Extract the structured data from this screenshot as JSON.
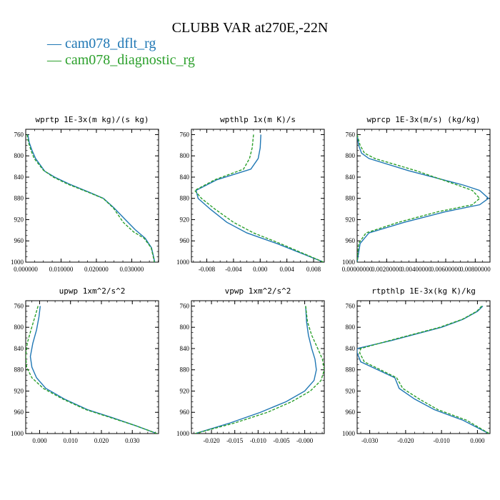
{
  "page": {
    "title": "CLUBB VAR at270E,-22N"
  },
  "legend": [
    {
      "label": "cam078_dflt_rg",
      "color": "#1f77b4"
    },
    {
      "label": "cam078_diagnostic_rg",
      "color": "#2ca02c"
    }
  ],
  "chart_data": [
    {
      "type": "line",
      "title": "wprtp  1E-3x(m kg)/(s kg)",
      "xlim": [
        0,
        0.0376
      ],
      "ylim": [
        1000,
        750
      ],
      "xticks": [
        "0.000000",
        "0.010000",
        "0.020000",
        "0.030000"
      ],
      "xtick_values": [
        0,
        0.01,
        0.02,
        0.03
      ],
      "yticks": [
        "760",
        "800",
        "840",
        "880",
        "920",
        "960",
        "1000"
      ],
      "ytick_values": [
        760,
        800,
        840,
        880,
        920,
        960,
        1000
      ],
      "series": [
        {
          "name": "cam078_dflt_rg",
          "color": "#1f77b4",
          "dashed": false,
          "x": [
            0.0006,
            0.001,
            0.0018,
            0.0028,
            0.0054,
            0.0082,
            0.0123,
            0.0178,
            0.022,
            0.025,
            0.0282,
            0.031,
            0.0338,
            0.0356,
            0.0362,
            0.0365
          ],
          "y": [
            760,
            775,
            790,
            805,
            829,
            840,
            853,
            868,
            880,
            898,
            920,
            939,
            955,
            973,
            990,
            1000
          ]
        },
        {
          "name": "cam078_diagnostic_rg",
          "color": "#2ca02c",
          "dashed": true,
          "x": [
            0.0004,
            0.0008,
            0.0015,
            0.0024,
            0.005,
            0.0078,
            0.0118,
            0.0175,
            0.0219,
            0.0248,
            0.0276,
            0.0305,
            0.0335,
            0.0355,
            0.0361,
            0.0364
          ],
          "y": [
            760,
            775,
            790,
            805,
            827,
            840,
            853,
            868,
            880,
            898,
            925,
            943,
            955,
            973,
            990,
            1000
          ]
        }
      ]
    },
    {
      "type": "line",
      "title": "wpthlp  1x(m K)/s",
      "xlim": [
        -0.0103,
        0.0096
      ],
      "ylim": [
        1000,
        750
      ],
      "xticks": [
        "-0.008",
        "-0.004",
        "0.000",
        "0.004",
        "0.008"
      ],
      "xtick_values": [
        -0.008,
        -0.004,
        0,
        0.004,
        0.008
      ],
      "yticks": [
        "760",
        "800",
        "840",
        "880",
        "920",
        "960",
        "1000"
      ],
      "ytick_values": [
        760,
        800,
        840,
        880,
        920,
        960,
        1000
      ],
      "series": [
        {
          "name": "cam078_dflt_rg",
          "color": "#1f77b4",
          "dashed": false,
          "x": [
            0.0001,
            0.0,
            -0.0003,
            -0.0014,
            -0.0065,
            -0.0096,
            -0.0093,
            -0.0075,
            -0.005,
            -0.002,
            0.0025,
            0.0095
          ],
          "y": [
            760,
            785,
            805,
            825,
            845,
            865,
            880,
            900,
            925,
            945,
            965,
            1000
          ]
        },
        {
          "name": "cam078_diagnostic_rg",
          "color": "#2ca02c",
          "dashed": true,
          "x": [
            -0.001,
            -0.0012,
            -0.0016,
            -0.0025,
            -0.0068,
            -0.0098,
            -0.0088,
            -0.0068,
            -0.004,
            -0.001,
            0.003,
            0.0095
          ],
          "y": [
            760,
            785,
            805,
            825,
            845,
            865,
            880,
            900,
            925,
            945,
            965,
            1000
          ]
        }
      ]
    },
    {
      "type": "line",
      "title": "wprcp  1E-3x(m/s) (kg/kg)",
      "xlim": [
        0,
        0.009
      ],
      "ylim": [
        1000,
        750
      ],
      "xticks": [
        "0.00000000",
        "0.00200000",
        "0.00400000",
        "0.00600000",
        "0.00800000"
      ],
      "xtick_values": [
        0,
        0.002,
        0.004,
        0.006,
        0.008
      ],
      "yticks": [
        "760",
        "800",
        "840",
        "880",
        "920",
        "960",
        "1000"
      ],
      "ytick_values": [
        760,
        800,
        840,
        880,
        920,
        960,
        1000
      ],
      "series": [
        {
          "name": "cam078_dflt_rg",
          "color": "#1f77b4",
          "dashed": false,
          "x": [
            0.0,
            0.0001,
            0.0003,
            0.0008,
            0.0035,
            0.0072,
            0.0083,
            0.0089,
            0.0083,
            0.006,
            0.0032,
            0.0008,
            0.0002,
            0.0
          ],
          "y": [
            760,
            780,
            795,
            805,
            828,
            855,
            865,
            880,
            892,
            905,
            925,
            945,
            965,
            1000
          ]
        },
        {
          "name": "cam078_diagnostic_rg",
          "color": "#2ca02c",
          "dashed": true,
          "x": [
            0.0,
            0.0002,
            0.0005,
            0.0012,
            0.004,
            0.0068,
            0.0078,
            0.0083,
            0.0078,
            0.0055,
            0.0028,
            0.0006,
            0.0001,
            0.0
          ],
          "y": [
            760,
            780,
            795,
            805,
            828,
            855,
            865,
            880,
            892,
            905,
            925,
            945,
            965,
            1000
          ]
        }
      ]
    },
    {
      "type": "line",
      "title": "upwp  1xm^2/s^2",
      "xlim": [
        -0.0045,
        0.0385
      ],
      "ylim": [
        1000,
        750
      ],
      "xticks": [
        "0.000",
        "0.010",
        "0.020",
        "0.030"
      ],
      "xtick_values": [
        0,
        0.01,
        0.02,
        0.03
      ],
      "yticks": [
        "760",
        "800",
        "840",
        "880",
        "920",
        "960",
        "1000"
      ],
      "ytick_values": [
        760,
        800,
        840,
        880,
        920,
        960,
        1000
      ],
      "series": [
        {
          "name": "cam078_dflt_rg",
          "color": "#1f77b4",
          "dashed": false,
          "x": [
            0.0002,
            -0.0002,
            -0.001,
            -0.0022,
            -0.003,
            -0.0025,
            -0.001,
            0.002,
            0.008,
            0.0155,
            0.0235,
            0.031,
            0.038
          ],
          "y": [
            760,
            780,
            805,
            830,
            855,
            875,
            895,
            915,
            935,
            955,
            970,
            985,
            1000
          ]
        },
        {
          "name": "cam078_diagnostic_rg",
          "color": "#2ca02c",
          "dashed": true,
          "x": [
            -0.0005,
            -0.0015,
            -0.0028,
            -0.004,
            -0.0045,
            -0.0042,
            -0.0025,
            0.0012,
            0.0075,
            0.015,
            0.023,
            0.031,
            0.038
          ],
          "y": [
            760,
            780,
            805,
            830,
            855,
            875,
            895,
            915,
            935,
            955,
            970,
            985,
            1000
          ]
        }
      ]
    },
    {
      "type": "line",
      "title": "vpwp  1xm^2/s^2",
      "xlim": [
        -0.0243,
        0.0042
      ],
      "ylim": [
        1000,
        750
      ],
      "xticks": [
        "-0.020",
        "-0.015",
        "-0.010",
        "-0.005",
        "-0.000"
      ],
      "xtick_values": [
        -0.02,
        -0.015,
        -0.01,
        -0.005,
        0
      ],
      "yticks": [
        "760",
        "800",
        "840",
        "880",
        "920",
        "960",
        "1000"
      ],
      "ytick_values": [
        760,
        800,
        840,
        880,
        920,
        960,
        1000
      ],
      "series": [
        {
          "name": "cam078_dflt_rg",
          "color": "#1f77b4",
          "dashed": false,
          "x": [
            0.0002,
            0.0004,
            0.0008,
            0.0015,
            0.0022,
            0.0025,
            0.002,
            0.0,
            -0.004,
            -0.0095,
            -0.016,
            -0.0235
          ],
          "y": [
            760,
            790,
            815,
            840,
            860,
            880,
            900,
            920,
            940,
            960,
            980,
            1000
          ]
        },
        {
          "name": "cam078_diagnostic_rg",
          "color": "#2ca02c",
          "dashed": true,
          "x": [
            0.0002,
            0.0006,
            0.0015,
            0.0028,
            0.0038,
            0.0042,
            0.0035,
            0.0012,
            -0.0028,
            -0.008,
            -0.015,
            -0.0235
          ],
          "y": [
            760,
            790,
            815,
            840,
            860,
            880,
            900,
            920,
            940,
            960,
            980,
            1000
          ]
        }
      ]
    },
    {
      "type": "line",
      "title": "rtpthlp  1E-3x(kg K)/kg",
      "xlim": [
        -0.0335,
        0.0035
      ],
      "ylim": [
        1000,
        750
      ],
      "xticks": [
        "-0.030",
        "-0.020",
        "-0.010",
        "0.000"
      ],
      "xtick_values": [
        -0.03,
        -0.02,
        -0.01,
        0
      ],
      "yticks": [
        "760",
        "800",
        "840",
        "880",
        "920",
        "960",
        "1000"
      ],
      "ytick_values": [
        760,
        800,
        840,
        880,
        920,
        960,
        1000
      ],
      "series": [
        {
          "name": "cam078_dflt_rg",
          "color": "#1f77b4",
          "dashed": false,
          "x": [
            0.0015,
            0.0,
            -0.004,
            -0.01,
            -0.024,
            -0.0335,
            -0.0335,
            -0.0325,
            -0.023,
            -0.0218,
            -0.0175,
            -0.012,
            -0.004,
            0.0032
          ],
          "y": [
            760,
            770,
            785,
            800,
            825,
            840,
            848,
            865,
            895,
            915,
            935,
            955,
            975,
            1000
          ]
        },
        {
          "name": "cam078_diagnostic_rg",
          "color": "#2ca02c",
          "dashed": true,
          "x": [
            0.0012,
            -0.0002,
            -0.0042,
            -0.0105,
            -0.0245,
            -0.0325,
            -0.0328,
            -0.0315,
            -0.0225,
            -0.0208,
            -0.0162,
            -0.011,
            -0.003,
            0.0033
          ],
          "y": [
            760,
            770,
            785,
            800,
            825,
            840,
            848,
            865,
            895,
            915,
            935,
            955,
            975,
            1000
          ]
        }
      ]
    }
  ]
}
